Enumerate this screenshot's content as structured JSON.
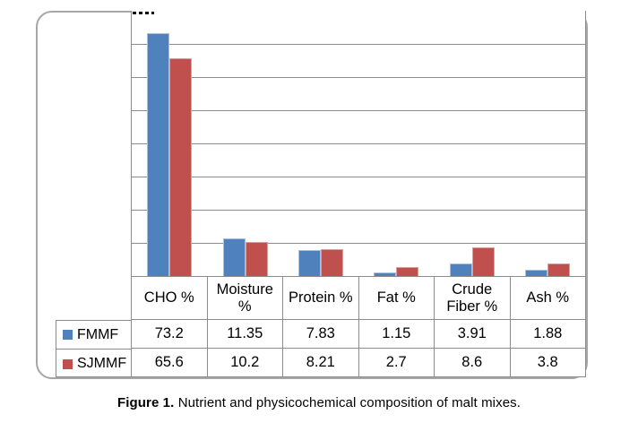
{
  "figure_caption": {
    "label": "Figure 1.",
    "text": "Nutrient and physicochemical composition of malt mixes."
  },
  "chart_data": {
    "type": "bar",
    "title": "",
    "xlabel": "",
    "ylabel": "",
    "categories": [
      "CHO %",
      "Moisture %",
      "Protein %",
      "Fat %",
      "Crude Fiber %",
      "Ash %"
    ],
    "series": [
      {
        "name": "FMMF",
        "color": "#4F81BD",
        "edge_color": "#A9C1DE",
        "values": [
          73.2,
          11.35,
          7.83,
          1.15,
          3.91,
          1.88
        ]
      },
      {
        "name": "SJMMF",
        "color": "#C0504D",
        "edge_color": "#D9A09E",
        "values": [
          65.6,
          10.2,
          8.21,
          2.7,
          8.6,
          3.8
        ]
      }
    ],
    "ylim": [
      0,
      80
    ],
    "gridline_step": 10,
    "grid": true,
    "legend_position": "table-left",
    "data_table_shown": true
  }
}
